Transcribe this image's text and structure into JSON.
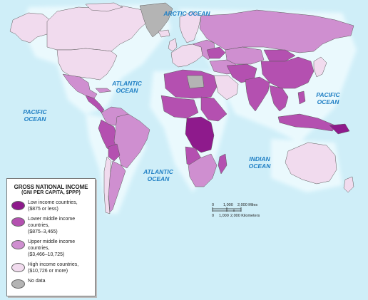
{
  "colors": {
    "ocean": "#cfeef8",
    "ocean_glow": "#e6f8fc",
    "low": "#8e1a8c",
    "lower_middle": "#b450b0",
    "upper_middle": "#cf8fd0",
    "high": "#f1dbee",
    "no_data": "#b4b4b4",
    "ocean_text": "#1f7fc4"
  },
  "oceans": [
    {
      "id": "arctic",
      "lines": [
        "ARCTIC OCEAN"
      ]
    },
    {
      "id": "atlantic-north",
      "lines": [
        "ATLANTIC",
        "OCEAN"
      ]
    },
    {
      "id": "pacific-west",
      "lines": [
        "PACIFIC",
        "OCEAN"
      ]
    },
    {
      "id": "pacific-east",
      "lines": [
        "PACIFIC",
        "OCEAN"
      ]
    },
    {
      "id": "atlantic-south",
      "lines": [
        "ATLANTIC",
        "OCEAN"
      ]
    },
    {
      "id": "indian",
      "lines": [
        "INDIAN",
        "OCEAN"
      ]
    }
  ],
  "legend": {
    "title": "GROSS NATIONAL INCOME",
    "subtitle": "(GNI PER CAPITA, $PPP)",
    "items": [
      {
        "line1": "Low income countries,",
        "line2": "($875 or less)",
        "color": "#8e1a8c"
      },
      {
        "line1": "Lower middle income countries,",
        "line2": "($875–3,465)",
        "color": "#b450b0"
      },
      {
        "line1": "Upper middle income countries,",
        "line2": "($3,466–10,725)",
        "color": "#cf8fd0"
      },
      {
        "line1": "High income countries,",
        "line2": "($10,726 or more)",
        "color": "#f1dbee"
      },
      {
        "line1": "No data",
        "line2": "",
        "color": "#b4b4b4"
      }
    ]
  },
  "scale": {
    "miles": [
      "0",
      "1,000",
      "2,000 Miles"
    ],
    "kilometers": [
      "0",
      "1,000",
      "2,000 Kilometers"
    ]
  }
}
